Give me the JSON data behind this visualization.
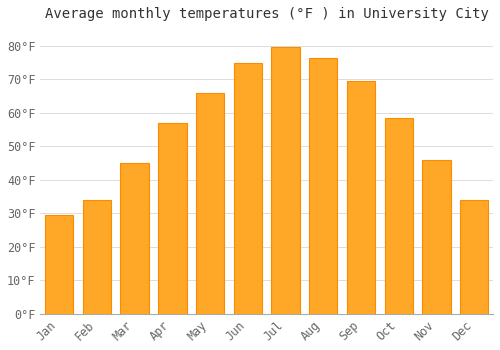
{
  "title": "Average monthly temperatures (°F ) in University City",
  "months": [
    "Jan",
    "Feb",
    "Mar",
    "Apr",
    "May",
    "Jun",
    "Jul",
    "Aug",
    "Sep",
    "Oct",
    "Nov",
    "Dec"
  ],
  "values": [
    29.5,
    34.0,
    45.0,
    57.0,
    66.0,
    75.0,
    79.5,
    76.5,
    69.5,
    58.5,
    46.0,
    34.0
  ],
  "bar_color": "#FFA726",
  "bar_edge_color": "#FB8C00",
  "background_color": "#FFFFFF",
  "grid_color": "#DDDDDD",
  "ylim": [
    0,
    85
  ],
  "yticks": [
    0,
    10,
    20,
    30,
    40,
    50,
    60,
    70,
    80
  ],
  "ytick_labels": [
    "0°F",
    "10°F",
    "20°F",
    "30°F",
    "40°F",
    "50°F",
    "60°F",
    "70°F",
    "80°F"
  ],
  "title_fontsize": 10,
  "tick_fontsize": 8.5,
  "tick_font_color": "#666666",
  "title_color": "#333333",
  "bar_width": 0.75
}
